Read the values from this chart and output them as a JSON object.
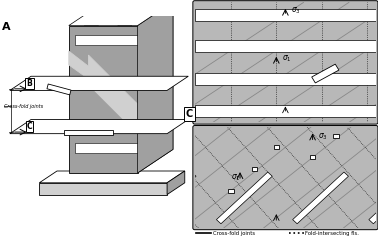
{
  "bg_color": "#ffffff",
  "gray_bg": "#b8b8b8",
  "gray_light": "#d0d0d0",
  "gray_mid": "#a0a0a0",
  "gray_dark": "#787878",
  "panel_A_label": "A",
  "panel_B_label": "B",
  "panel_C_label": "C",
  "legend_cross_fold": "Cross-fold joints",
  "legend_fold_int": "Fold-intersecting fls.",
  "cross_fold_label": "Cross-fold joints"
}
